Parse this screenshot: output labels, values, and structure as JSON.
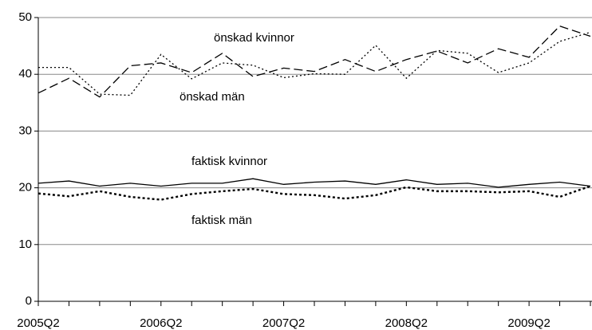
{
  "chart_data": {
    "type": "line",
    "categories": [
      "2005Q2",
      null,
      null,
      null,
      "2006Q2",
      null,
      null,
      null,
      "2007Q2",
      null,
      null,
      null,
      "2008Q2",
      null,
      null,
      null,
      "2009Q2",
      null,
      null
    ],
    "series": [
      {
        "name": "önskad kvinnor",
        "color": "#000000",
        "style": "dashed",
        "values": [
          36.7,
          39.3,
          36.0,
          41.5,
          42.0,
          40.3,
          43.7,
          39.6,
          41.1,
          40.5,
          42.6,
          40.5,
          42.6,
          44.1,
          42.0,
          44.5,
          43.0,
          48.5,
          46.7
        ]
      },
      {
        "name": "önskad män",
        "color": "#000000",
        "style": "dotted",
        "values": [
          41.2,
          41.2,
          36.5,
          36.3,
          43.5,
          39.2,
          42.0,
          41.6,
          39.4,
          40.1,
          40.0,
          45.1,
          39.3,
          44.2,
          43.7,
          40.3,
          42.0,
          45.8,
          47.4
        ]
      },
      {
        "name": "faktisk kvinnor",
        "color": "#000000",
        "style": "solid",
        "values": [
          20.8,
          21.2,
          20.3,
          20.8,
          20.3,
          20.8,
          20.8,
          21.6,
          20.6,
          21.0,
          21.2,
          20.6,
          21.4,
          20.6,
          20.8,
          20.1,
          20.6,
          21.0,
          20.3
        ]
      },
      {
        "name": "faktisk män",
        "color": "#000000",
        "style": "dotted-bold",
        "values": [
          19.0,
          18.5,
          19.4,
          18.4,
          17.9,
          18.9,
          19.4,
          19.8,
          18.9,
          18.7,
          18.1,
          18.7,
          20.1,
          19.4,
          19.4,
          19.2,
          19.4,
          18.4,
          20.3
        ]
      }
    ],
    "ylim": [
      0,
      50
    ],
    "yticks": [
      0,
      10,
      20,
      30,
      40,
      50
    ],
    "grid": true
  }
}
